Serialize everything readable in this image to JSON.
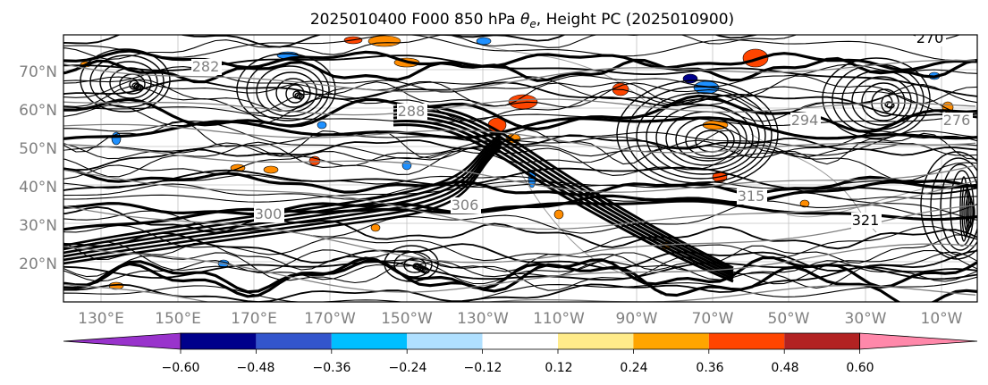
{
  "title": {
    "prefix": "2025010400 F000 850 hPa ",
    "symbol": "θ",
    "subscript": "e",
    "suffix": ", Height PC (2025010900)"
  },
  "lat_labels": [
    "70°N",
    "60°N",
    "50°N",
    "40°N",
    "30°N",
    "20°N"
  ],
  "lon_labels": [
    "130°E",
    "150°E",
    "170°E",
    "170°W",
    "150°W",
    "130°W",
    "110°W",
    "90°W",
    "70°W",
    "50°W",
    "30°W",
    "10°W"
  ],
  "contour_labels": [
    "270",
    "321",
    "315",
    "306",
    "300",
    "294",
    "288",
    "282",
    "276"
  ],
  "colorbar": {
    "ticks": [
      "−0.60",
      "−0.48",
      "−0.36",
      "−0.24",
      "−0.12",
      "0.12",
      "0.24",
      "0.36",
      "0.48",
      "0.60"
    ],
    "under_color": "#9933cc",
    "over_color": "#ff88aa",
    "colors": [
      "#9933cc",
      "#00008b",
      "#3355cc",
      "#00bfff",
      "#b0e0ff",
      "#ffffff",
      "#ffeb8a",
      "#ffa500",
      "#ff4500",
      "#b22222",
      "#ff88aa"
    ]
  },
  "colors": {
    "positive_patch": "#ff8c00",
    "strong_positive_patch": "#ff4500",
    "negative_patch": "#1e90ff",
    "contour": "#000000",
    "grid": "#c0c0c0",
    "height_contour": "#808080"
  }
}
